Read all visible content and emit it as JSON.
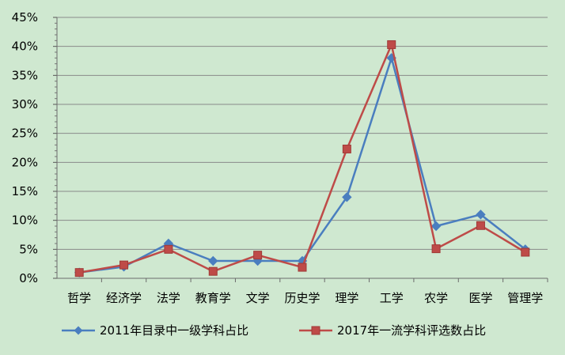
{
  "chart_data": {
    "type": "line",
    "title": "",
    "xlabel": "",
    "ylabel": "",
    "categories": [
      "哲学",
      "经济学",
      "法学",
      "教育学",
      "文学",
      "历史学",
      "理学",
      "工学",
      "农学",
      "医学",
      "管理学"
    ],
    "ylim": [
      0,
      45
    ],
    "y_ticks": [
      0,
      5,
      10,
      15,
      20,
      25,
      30,
      35,
      40,
      45
    ],
    "y_tick_labels": [
      "0%",
      "5%",
      "10%",
      "15%",
      "20%",
      "25%",
      "30%",
      "35%",
      "40%",
      "45%"
    ],
    "grid": "horizontal",
    "legend_position": "bottom",
    "series": [
      {
        "name": "2011年目录中一级学科占比",
        "color": "#4a7ebf",
        "marker": "diamond",
        "values": [
          1,
          2,
          6,
          3,
          3,
          3,
          14,
          38,
          9,
          11,
          5
        ]
      },
      {
        "name": "2017年一流学科评选数占比",
        "color": "#be4b48",
        "marker": "square",
        "values": [
          1,
          2.3,
          5,
          1.2,
          4,
          1.9,
          22.3,
          40.3,
          5.1,
          9.1,
          4.5
        ]
      }
    ]
  }
}
